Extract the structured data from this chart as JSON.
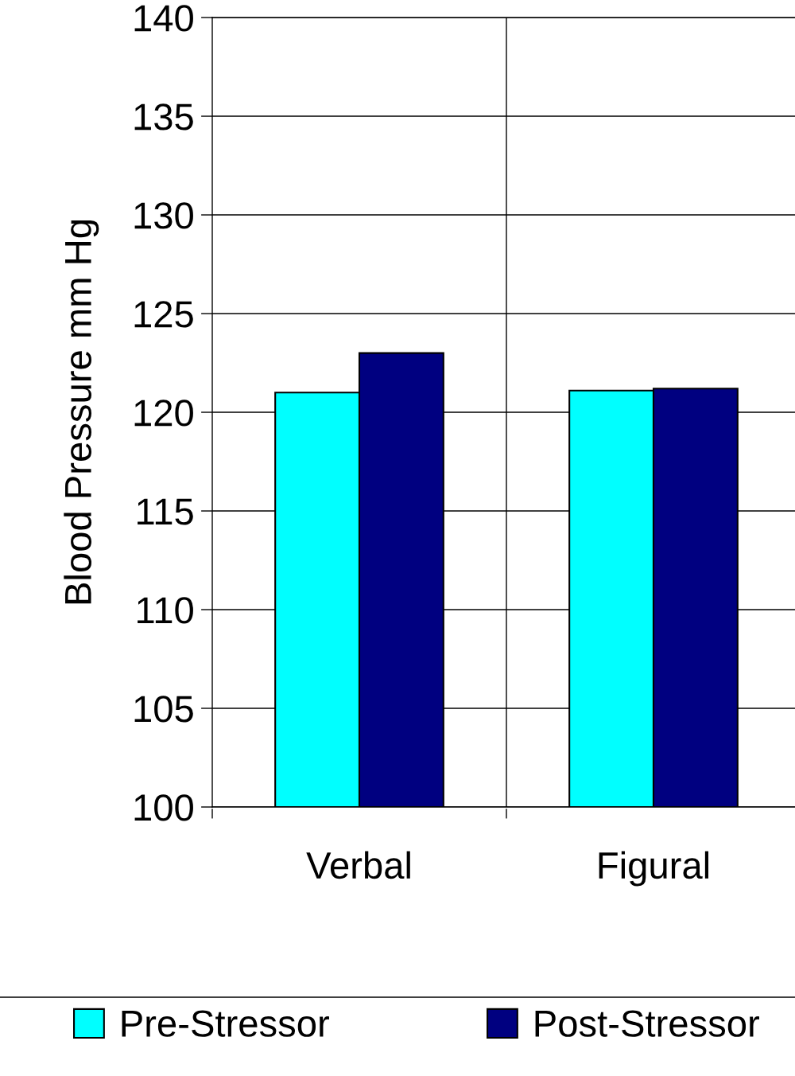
{
  "chart_data": {
    "type": "bar",
    "ylabel": "Blood Pressure mm Hg",
    "categories": [
      "Verbal",
      "Figural"
    ],
    "series": [
      {
        "name": "Pre-Stressor",
        "color": "#00ffff",
        "values": [
          121.0,
          121.1
        ]
      },
      {
        "name": "Post-Stressor",
        "color": "#000080",
        "values": [
          123.0,
          121.2
        ]
      }
    ],
    "ylim": [
      100,
      140
    ],
    "yticks": [
      100,
      105,
      110,
      115,
      120,
      125,
      130,
      135,
      140
    ],
    "grid": true,
    "legend": "bottom"
  }
}
